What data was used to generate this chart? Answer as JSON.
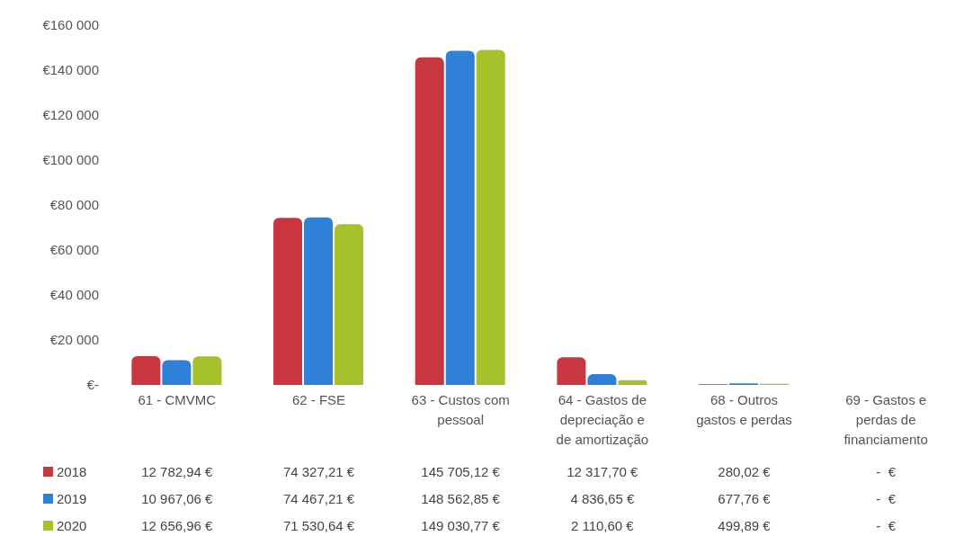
{
  "chart_data": {
    "type": "bar",
    "categories": [
      "61 - CMVMC",
      "62 - FSE",
      "63 - Custos com pessoal",
      "64 - Gastos de depreciação e de amortização",
      "68 - Outros gastos e perdas",
      "69 - Gastos e perdas de financiamento"
    ],
    "series": [
      {
        "name": "2018",
        "color": "#c8363f",
        "values": [
          12782.94,
          74327.21,
          145705.12,
          12317.7,
          280.02,
          0
        ],
        "value_labels": [
          "12 782,94 €",
          "74 327,21 €",
          "145 705,12 €",
          "12 317,70 €",
          "280,02 €",
          "-  €"
        ]
      },
      {
        "name": "2019",
        "color": "#2f80d8",
        "values": [
          10967.06,
          74467.21,
          148562.85,
          4836.65,
          677.76,
          0
        ],
        "value_labels": [
          "10 967,06 €",
          "74 467,21 €",
          "148 562,85 €",
          "4 836,65 €",
          "677,76 €",
          "-  €"
        ]
      },
      {
        "name": "2020",
        "color": "#a5c12c",
        "values": [
          12656.96,
          71530.64,
          149030.77,
          2110.6,
          499.89,
          0
        ],
        "value_labels": [
          "12 656,96 €",
          "71 530,64 €",
          "149 030,77 €",
          "2 110,60 €",
          "499,89 €",
          "-  €"
        ]
      }
    ],
    "ylim": [
      0,
      160000
    ],
    "yticks": [
      {
        "value": 0,
        "label": "€-"
      },
      {
        "value": 20000,
        "label": "€20 000"
      },
      {
        "value": 40000,
        "label": "€40 000"
      },
      {
        "value": 60000,
        "label": "€60 000"
      },
      {
        "value": 80000,
        "label": "€80 000"
      },
      {
        "value": 100000,
        "label": "€100 000"
      },
      {
        "value": 120000,
        "label": "€120 000"
      },
      {
        "value": 140000,
        "label": "€140 000"
      },
      {
        "value": 160000,
        "label": "€160 000"
      }
    ],
    "grid": false,
    "legend": "bottom"
  }
}
